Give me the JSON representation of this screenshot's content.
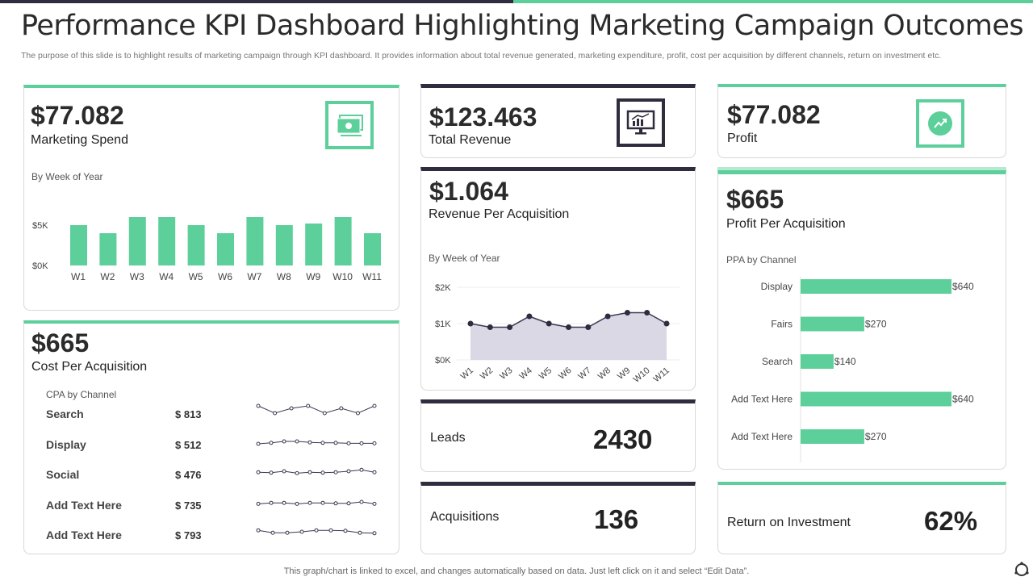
{
  "page": {
    "title": "Performance KPI Dashboard Highlighting Marketing Campaign Outcomes",
    "subtitle": "The purpose of this slide is to highlight results of marketing campaign through KPI dashboard. It provides information about total revenue generated, marketing expenditure, profit, cost per acquisition by different channels, return on investment etc.",
    "footer": "This graph/chart is linked to excel,  and changes automatically based on data. Just left click on it and select “Edit Data”."
  },
  "colors": {
    "accent": "#5ccf9a",
    "dark": "#2e2c3e",
    "area_fill": "#d9d8e4"
  },
  "marketing_spend": {
    "value": "$77.082",
    "label": "Marketing Spend",
    "chart_caption": "By Week of Year",
    "icon": "money-icon"
  },
  "total_revenue": {
    "value": "$123.463",
    "label": "Total Revenue",
    "icon": "monitor-chart-icon"
  },
  "profit": {
    "value": "$77.082",
    "label": "Profit",
    "icon": "trend-up-icon"
  },
  "revenue_per_acquisition": {
    "value": "$1.064",
    "label": "Revenue  Per Acquisition",
    "chart_caption": "By Week of Year"
  },
  "profit_per_acquisition": {
    "value": "$665",
    "label": "Profit Per Acquisition",
    "chart_caption": "PPA by Channel"
  },
  "cost_per_acquisition": {
    "value": "$665",
    "label": "Cost Per Acquisition",
    "caption": "CPA by Channel",
    "rows": [
      {
        "channel": "Search",
        "amount": "$ 813",
        "trend": [
          6,
          3,
          5,
          6,
          3,
          5,
          3,
          6
        ]
      },
      {
        "channel": "Display",
        "amount": "$ 512",
        "trend": [
          3,
          3.4,
          4,
          4,
          3.6,
          3.4,
          3.4,
          3.2,
          3.2,
          3.2
        ]
      },
      {
        "channel": "Social",
        "amount": "$ 476",
        "trend": [
          3.6,
          3.4,
          4,
          3.2,
          3.6,
          3.4,
          3.6,
          4,
          4.6,
          3.6
        ]
      },
      {
        "channel": "Add  Text Here",
        "amount": "$ 735",
        "trend": [
          3.2,
          3.6,
          3.6,
          3.2,
          3.6,
          3.6,
          3.4,
          3.4,
          4,
          3.2
        ]
      },
      {
        "channel": "Add  Text Here",
        "amount": "$ 793",
        "trend": [
          4.6,
          3.6,
          3.6,
          4,
          4.6,
          4.6,
          4.4,
          3.6,
          3.4
        ]
      }
    ]
  },
  "leads": {
    "label": "Leads",
    "value": "2430"
  },
  "acquisitions": {
    "label": "Acquisitions",
    "value": "136"
  },
  "roi": {
    "label": "Return  on Investment",
    "value": "62%"
  },
  "chart_data": [
    {
      "type": "bar",
      "title": "By Week of Year",
      "categories": [
        "W1",
        "W2",
        "W3",
        "W4",
        "W5",
        "W6",
        "W7",
        "W8",
        "W9",
        "W10",
        "W11"
      ],
      "values": [
        5,
        4,
        6,
        6,
        5,
        4,
        6,
        5,
        5.2,
        6,
        4
      ],
      "ylim": [
        0,
        10
      ],
      "yticks": [
        "$0K",
        "$5K",
        "$10K"
      ],
      "color": "#5ccf9a"
    },
    {
      "type": "area",
      "title": "By Week of Year",
      "categories": [
        "W1",
        "W2",
        "W3",
        "W4",
        "W5",
        "W6",
        "W7",
        "W8",
        "W9",
        "W10",
        "W11"
      ],
      "values": [
        1,
        0.9,
        0.9,
        1.2,
        1,
        0.9,
        0.9,
        1.2,
        1.3,
        1.3,
        1
      ],
      "ylim": [
        0,
        2
      ],
      "yticks": [
        "$0K",
        "$1K",
        "$2K"
      ]
    },
    {
      "type": "bar",
      "orientation": "horizontal",
      "title": "PPA by Channel",
      "categories": [
        "Display",
        "Fairs",
        "Search",
        "Add Text Here",
        "Add Text Here"
      ],
      "values": [
        640,
        270,
        140,
        640,
        270
      ],
      "data_labels": [
        "$640",
        "$270",
        "$140",
        "$640",
        "$270"
      ],
      "color": "#5ccf9a"
    }
  ]
}
